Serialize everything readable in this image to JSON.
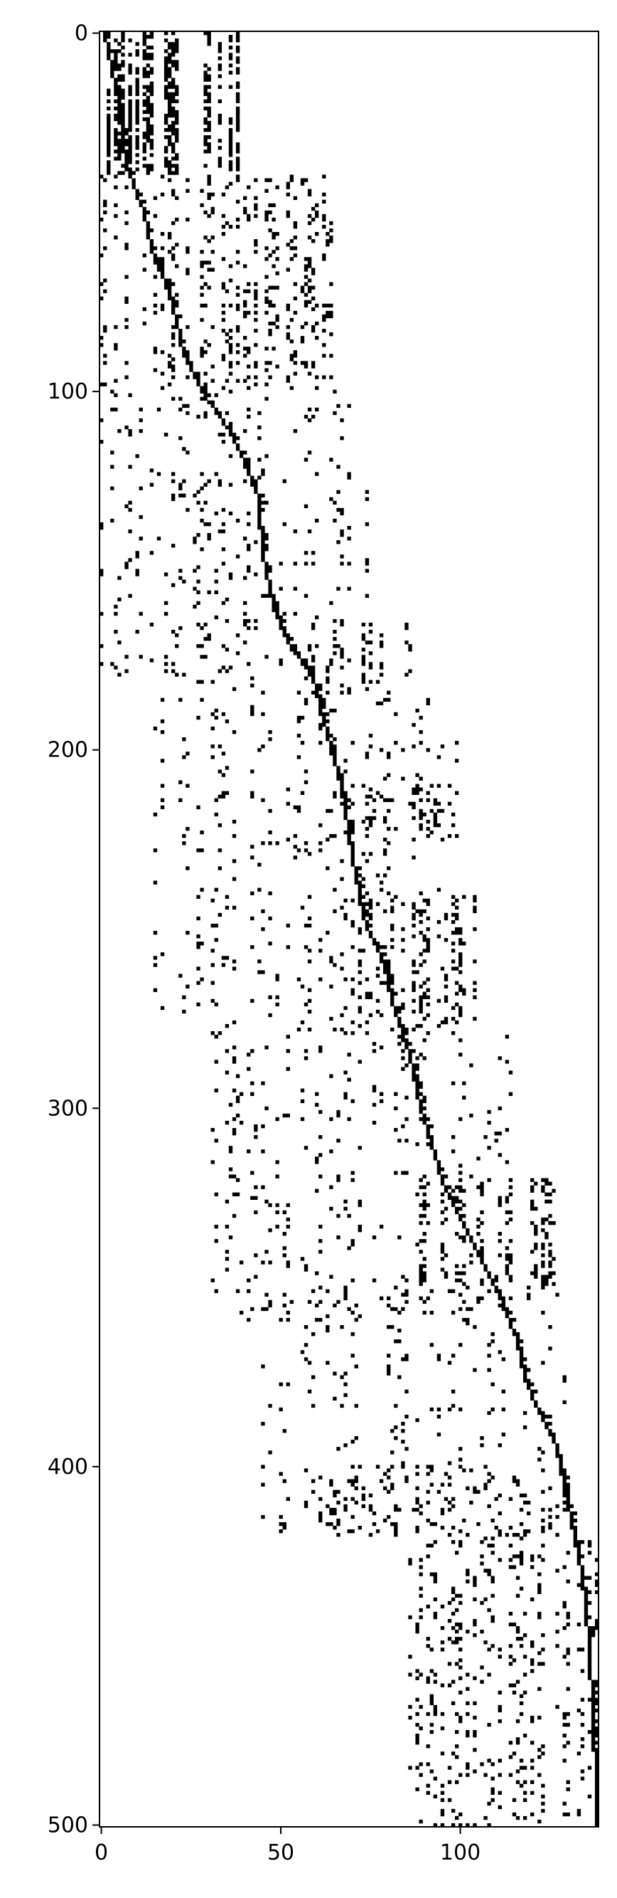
{
  "chart_data": {
    "type": "heatmap",
    "title": "",
    "xlabel": "",
    "ylabel": "",
    "colormap": "binary",
    "grid": false,
    "legend": "none",
    "matrix_shape": [
      501,
      139
    ],
    "xlim": [
      -0.5,
      138.5
    ],
    "ylim": [
      500.5,
      -0.5
    ],
    "x_ticks": [
      0,
      50,
      100
    ],
    "y_ticks": [
      0,
      100,
      200,
      300,
      400,
      500
    ],
    "x_tick_labels": [
      "0",
      "50",
      "100"
    ],
    "y_tick_labels": [
      "0",
      "100",
      "200",
      "300",
      "400",
      "500"
    ],
    "colors": {
      "nonzero": "#000000",
      "zero": "#ffffff",
      "axis": "#000000"
    },
    "diagonal": [
      [
        0,
        1
      ],
      [
        10,
        3
      ],
      [
        20,
        5
      ],
      [
        30,
        6
      ],
      [
        37,
        7
      ],
      [
        45,
        10
      ],
      [
        50,
        12
      ],
      [
        60,
        14
      ],
      [
        70,
        18
      ],
      [
        80,
        21
      ],
      [
        90,
        23
      ],
      [
        100,
        28
      ],
      [
        110,
        35
      ],
      [
        120,
        40
      ],
      [
        130,
        44
      ],
      [
        145,
        45
      ],
      [
        160,
        48
      ],
      [
        170,
        52
      ],
      [
        180,
        59
      ],
      [
        200,
        64
      ],
      [
        210,
        67
      ],
      [
        230,
        70
      ],
      [
        250,
        74
      ],
      [
        260,
        79
      ],
      [
        270,
        81
      ],
      [
        285,
        86
      ],
      [
        300,
        89
      ],
      [
        320,
        95
      ],
      [
        335,
        102
      ],
      [
        350,
        110
      ],
      [
        365,
        116
      ],
      [
        375,
        118
      ],
      [
        385,
        122
      ],
      [
        395,
        127
      ],
      [
        410,
        130
      ],
      [
        430,
        134
      ],
      [
        450,
        136
      ],
      [
        470,
        137
      ],
      [
        490,
        138
      ],
      [
        500,
        138
      ]
    ],
    "blocks": [
      {
        "rows": [
          0,
          40
        ],
        "cols": [
          0,
          45
        ],
        "density": 0.32
      },
      {
        "rows": [
          40,
          100
        ],
        "cols": [
          0,
          65
        ],
        "density": 0.1
      },
      {
        "rows": [
          100,
          180
        ],
        "cols": [
          0,
          75
        ],
        "density": 0.045
      },
      {
        "rows": [
          165,
          185
        ],
        "cols": [
          55,
          88
        ],
        "density": 0.16
      },
      {
        "rows": [
          180,
          280
        ],
        "cols": [
          15,
          100
        ],
        "density": 0.045
      },
      {
        "rows": [
          210,
          225
        ],
        "cols": [
          68,
          98
        ],
        "density": 0.1
      },
      {
        "rows": [
          240,
          280
        ],
        "cols": [
          70,
          105
        ],
        "density": 0.12
      },
      {
        "rows": [
          280,
          360
        ],
        "cols": [
          30,
          115
        ],
        "density": 0.045
      },
      {
        "rows": [
          320,
          350
        ],
        "cols": [
          88,
          128
        ],
        "density": 0.17
      },
      {
        "rows": [
          350,
          420
        ],
        "cols": [
          45,
          130
        ],
        "density": 0.035
      },
      {
        "rows": [
          420,
          501
        ],
        "cols": [
          85,
          139
        ],
        "density": 0.085
      },
      {
        "rows": [
          400,
          420
        ],
        "cols": [
          60,
          128
        ],
        "density": 0.07
      }
    ]
  }
}
